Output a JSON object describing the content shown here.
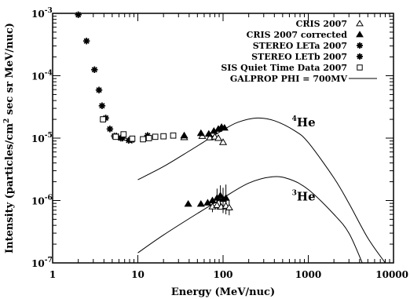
{
  "chart_data": {
    "type": "scatter",
    "xlabel": "Energy (MeV/nuc)",
    "ylabel_parts": [
      "Intensity (particles/cm",
      "2",
      " sec sr MeV/nuc)"
    ],
    "xscale": "log",
    "yscale": "log",
    "xlim": [
      1,
      10000
    ],
    "ylim": [
      1e-07,
      0.001
    ],
    "x_ticks": [
      {
        "value": 1,
        "label": "1"
      },
      {
        "value": 10,
        "label": "10"
      },
      {
        "value": 100,
        "label": "100"
      },
      {
        "value": 1000,
        "label": "1000"
      },
      {
        "value": 10000,
        "label": "10000"
      }
    ],
    "y_ticks": [
      {
        "value": 1e-07,
        "base": "10",
        "exp": "-7"
      },
      {
        "value": 1e-06,
        "base": "10",
        "exp": "-6"
      },
      {
        "value": 1e-05,
        "base": "10",
        "exp": "-5"
      },
      {
        "value": 0.0001,
        "base": "10",
        "exp": "-4"
      },
      {
        "value": 0.001,
        "base": "10",
        "exp": "-3"
      }
    ],
    "legend_position": "top-right",
    "legend": [
      {
        "label": "CRIS 2007",
        "marker": "triangle-open"
      },
      {
        "label": "CRIS 2007 corrected",
        "marker": "triangle-filled"
      },
      {
        "label": "STEREO LETa 2007",
        "marker": "asterisk"
      },
      {
        "label": "STEREO LETb 2007",
        "marker": "asterisk"
      },
      {
        "label": "SIS Quiet Time Data 2007",
        "marker": "square-open"
      },
      {
        "label": "GALPROP PHI = 700MV",
        "marker": "line"
      }
    ],
    "curve_labels": [
      {
        "mass": "4",
        "element": "He",
        "x": 340,
        "y": 1.55e-05
      },
      {
        "mass": "3",
        "element": "He",
        "x": 340,
        "y": 1e-06
      }
    ],
    "series": [
      {
        "name": "STEREO LETa 2007",
        "marker": "asterisk",
        "points": [
          [
            2.0,
            0.00095
          ],
          [
            2.5,
            0.00036
          ],
          [
            3.1,
            0.000125
          ],
          [
            3.5,
            5.9e-05
          ],
          [
            3.8,
            3.3e-05
          ],
          [
            4.2,
            2.1e-05
          ],
          [
            4.7,
            1.4e-05
          ],
          [
            5.3,
            1.08e-05
          ],
          [
            6.3,
            1e-05
          ],
          [
            7.8,
            9.2e-06
          ],
          [
            13,
            1.1e-05
          ]
        ]
      },
      {
        "name": "STEREO LETb 2007",
        "marker": "asterisk",
        "points": [
          [
            5.6,
            1.08e-05
          ],
          [
            6.6,
            1e-05
          ],
          [
            8.5,
            9.3e-06
          ]
        ]
      },
      {
        "name": "SIS Quiet Time Data 2007",
        "marker": "square-open",
        "points": [
          [
            3.9,
            2e-05
          ],
          [
            5.5,
            1.05e-05
          ],
          [
            6.8,
            1.15e-05
          ],
          [
            8.6,
            9.8e-06
          ],
          [
            11.5,
            9.6e-06
          ],
          [
            13.5,
            1e-05
          ],
          [
            16,
            1.05e-05
          ],
          [
            20,
            1.07e-05
          ],
          [
            26,
            1.1e-05
          ]
        ]
      },
      {
        "name": "CRIS 2007",
        "marker": "triangle-open",
        "points": [
          [
            35,
            1.03e-05
          ],
          [
            57,
            1.08e-05
          ],
          [
            70,
            1.02e-05
          ],
          [
            80,
            1.05e-05
          ],
          [
            88,
            1e-05
          ],
          [
            100,
            8.6e-06
          ],
          [
            75,
            8e-07
          ],
          [
            85,
            8.4e-07
          ],
          [
            95,
            7.9e-07
          ],
          [
            108,
            8.2e-07
          ],
          [
            118,
            7.7e-07
          ]
        ]
      },
      {
        "name": "CRIS 2007 corrected",
        "marker": "triangle-filled",
        "points": [
          [
            35,
            1.1e-05
          ],
          [
            55,
            1.2e-05
          ],
          [
            68,
            1.17e-05
          ],
          [
            78,
            1.3e-05
          ],
          [
            88,
            1.4e-05
          ],
          [
            96,
            1.5e-05
          ],
          [
            104,
            1.46e-05
          ],
          [
            39,
            8.8e-07
          ],
          [
            55,
            8.8e-07
          ],
          [
            66,
            9.2e-07
          ],
          [
            75,
            1e-06
          ],
          [
            85,
            1.1e-06
          ],
          [
            93,
            1.2e-06
          ],
          [
            100,
            1.05e-06
          ],
          [
            108,
            1.1e-06
          ]
        ]
      },
      {
        "name": "GALPROP PHI = 700MV (4He)",
        "marker": "line",
        "points": [
          [
            10,
            2.15e-06
          ],
          [
            20,
            3.5e-06
          ],
          [
            40,
            6.2e-06
          ],
          [
            70,
            1e-05
          ],
          [
            100,
            1.35e-05
          ],
          [
            150,
            1.8e-05
          ],
          [
            250,
            2.1e-05
          ],
          [
            400,
            1.9e-05
          ],
          [
            700,
            1.3e-05
          ],
          [
            1000,
            8.5e-06
          ],
          [
            2000,
            2.3e-06
          ],
          [
            3000,
            9e-07
          ],
          [
            5000,
            2.5e-07
          ],
          [
            8000,
            1e-07
          ]
        ]
      },
      {
        "name": "GALPROP PHI = 700MV (3He)",
        "marker": "line",
        "points": [
          [
            10,
            1.45e-07
          ],
          [
            20,
            2.8e-07
          ],
          [
            50,
            6.2e-07
          ],
          [
            100,
            1.1e-06
          ],
          [
            200,
            1.9e-06
          ],
          [
            380,
            2.4e-06
          ],
          [
            600,
            2.2e-06
          ],
          [
            1000,
            1.5e-06
          ],
          [
            2000,
            6e-07
          ],
          [
            3000,
            3e-07
          ],
          [
            4300,
            1e-07
          ]
        ]
      }
    ],
    "error_bars": [
      {
        "x": 75,
        "y": 8e-07,
        "lo": 6.5e-07,
        "hi": 9.8e-07
      },
      {
        "x": 85,
        "y": 1.1e-06,
        "lo": 7.2e-07,
        "hi": 1.55e-06
      },
      {
        "x": 93,
        "y": 1.2e-06,
        "lo": 7.8e-07,
        "hi": 1.75e-06
      },
      {
        "x": 100,
        "y": 1.05e-06,
        "lo": 6.3e-07,
        "hi": 1.6e-06
      },
      {
        "x": 108,
        "y": 1.1e-06,
        "lo": 6e-07,
        "hi": 1.8e-06
      },
      {
        "x": 118,
        "y": 7.7e-07,
        "lo": 5.8e-07,
        "hi": 1e-06
      }
    ]
  }
}
